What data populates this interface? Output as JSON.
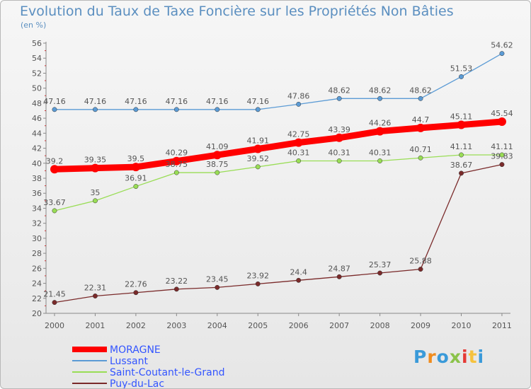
{
  "header": {
    "title": "Evolution du Taux de Taxe Foncière sur les Propriétés Non Bâties",
    "unit": "(en %)"
  },
  "chart_data": {
    "type": "line",
    "title": "Evolution du Taux de Taxe Foncière sur les Propriétés Non Bâties",
    "ylabel": "(en %)",
    "xlabel": "",
    "ylim": [
      20,
      56
    ],
    "ytick_step": 2,
    "grid": false,
    "legend_position": "bottom-left",
    "categories": [
      "2000",
      "2001",
      "2002",
      "2003",
      "2004",
      "2005",
      "2006",
      "2007",
      "2008",
      "2009",
      "2010",
      "2011"
    ],
    "series": [
      {
        "name": "MORAGNE",
        "color": "#ff0000",
        "highlight": true,
        "values": [
          39.2,
          39.35,
          39.5,
          40.29,
          41.09,
          41.91,
          42.75,
          43.39,
          44.26,
          44.7,
          45.11,
          45.54
        ],
        "labels": [
          "39.2",
          "39.35",
          "39.5",
          "40.29",
          "41.09",
          "41.91",
          "42.75",
          "43.39",
          "44.26",
          "44.7",
          "45.11",
          "45.54"
        ]
      },
      {
        "name": "Lussant",
        "color": "#5b9bd5",
        "values": [
          47.16,
          47.16,
          47.16,
          47.16,
          47.16,
          47.16,
          47.86,
          48.62,
          48.62,
          48.62,
          51.53,
          54.62
        ],
        "labels": [
          "47.16",
          "47.16",
          "47.16",
          "47.16",
          "47.16",
          "47.16",
          "47.86",
          "48.62",
          "48.62",
          "48.62",
          "51.53",
          "54.62"
        ]
      },
      {
        "name": "Saint-Coutant-le-Grand",
        "color": "#99dd55",
        "values": [
          33.67,
          35,
          36.91,
          38.75,
          38.75,
          39.52,
          40.31,
          40.31,
          40.31,
          40.71,
          41.11,
          41.11
        ],
        "labels": [
          "33.67",
          "35",
          "36.91",
          "38.75",
          "38.75",
          "39.52",
          "40.31",
          "40.31",
          "40.31",
          "40.71",
          "41.11",
          "41.11"
        ]
      },
      {
        "name": "Puy-du-Lac",
        "color": "#7a2a2a",
        "values": [
          21.45,
          22.31,
          22.76,
          23.22,
          23.45,
          23.92,
          24.4,
          24.87,
          25.37,
          25.88,
          38.67,
          39.83
        ],
        "labels": [
          "21.45",
          "22.31",
          "22.76",
          "23.22",
          "23.45",
          "23.92",
          "24.4",
          "24.87",
          "25.37",
          "25.88",
          "38.67",
          "39.83"
        ]
      }
    ]
  },
  "legend": {
    "items": [
      {
        "label": "MORAGNE",
        "color": "#ff0000",
        "text_color": "#3355ff"
      },
      {
        "label": "Lussant",
        "color": "#5b9bd5",
        "text_color": "#3355ff"
      },
      {
        "label": "Saint-Coutant-le-Grand",
        "color": "#99dd55",
        "text_color": "#3355ff"
      },
      {
        "label": "Puy-du-Lac",
        "color": "#7a2a2a",
        "text_color": "#3355ff"
      }
    ]
  },
  "logo": {
    "text": "Proxiti"
  }
}
